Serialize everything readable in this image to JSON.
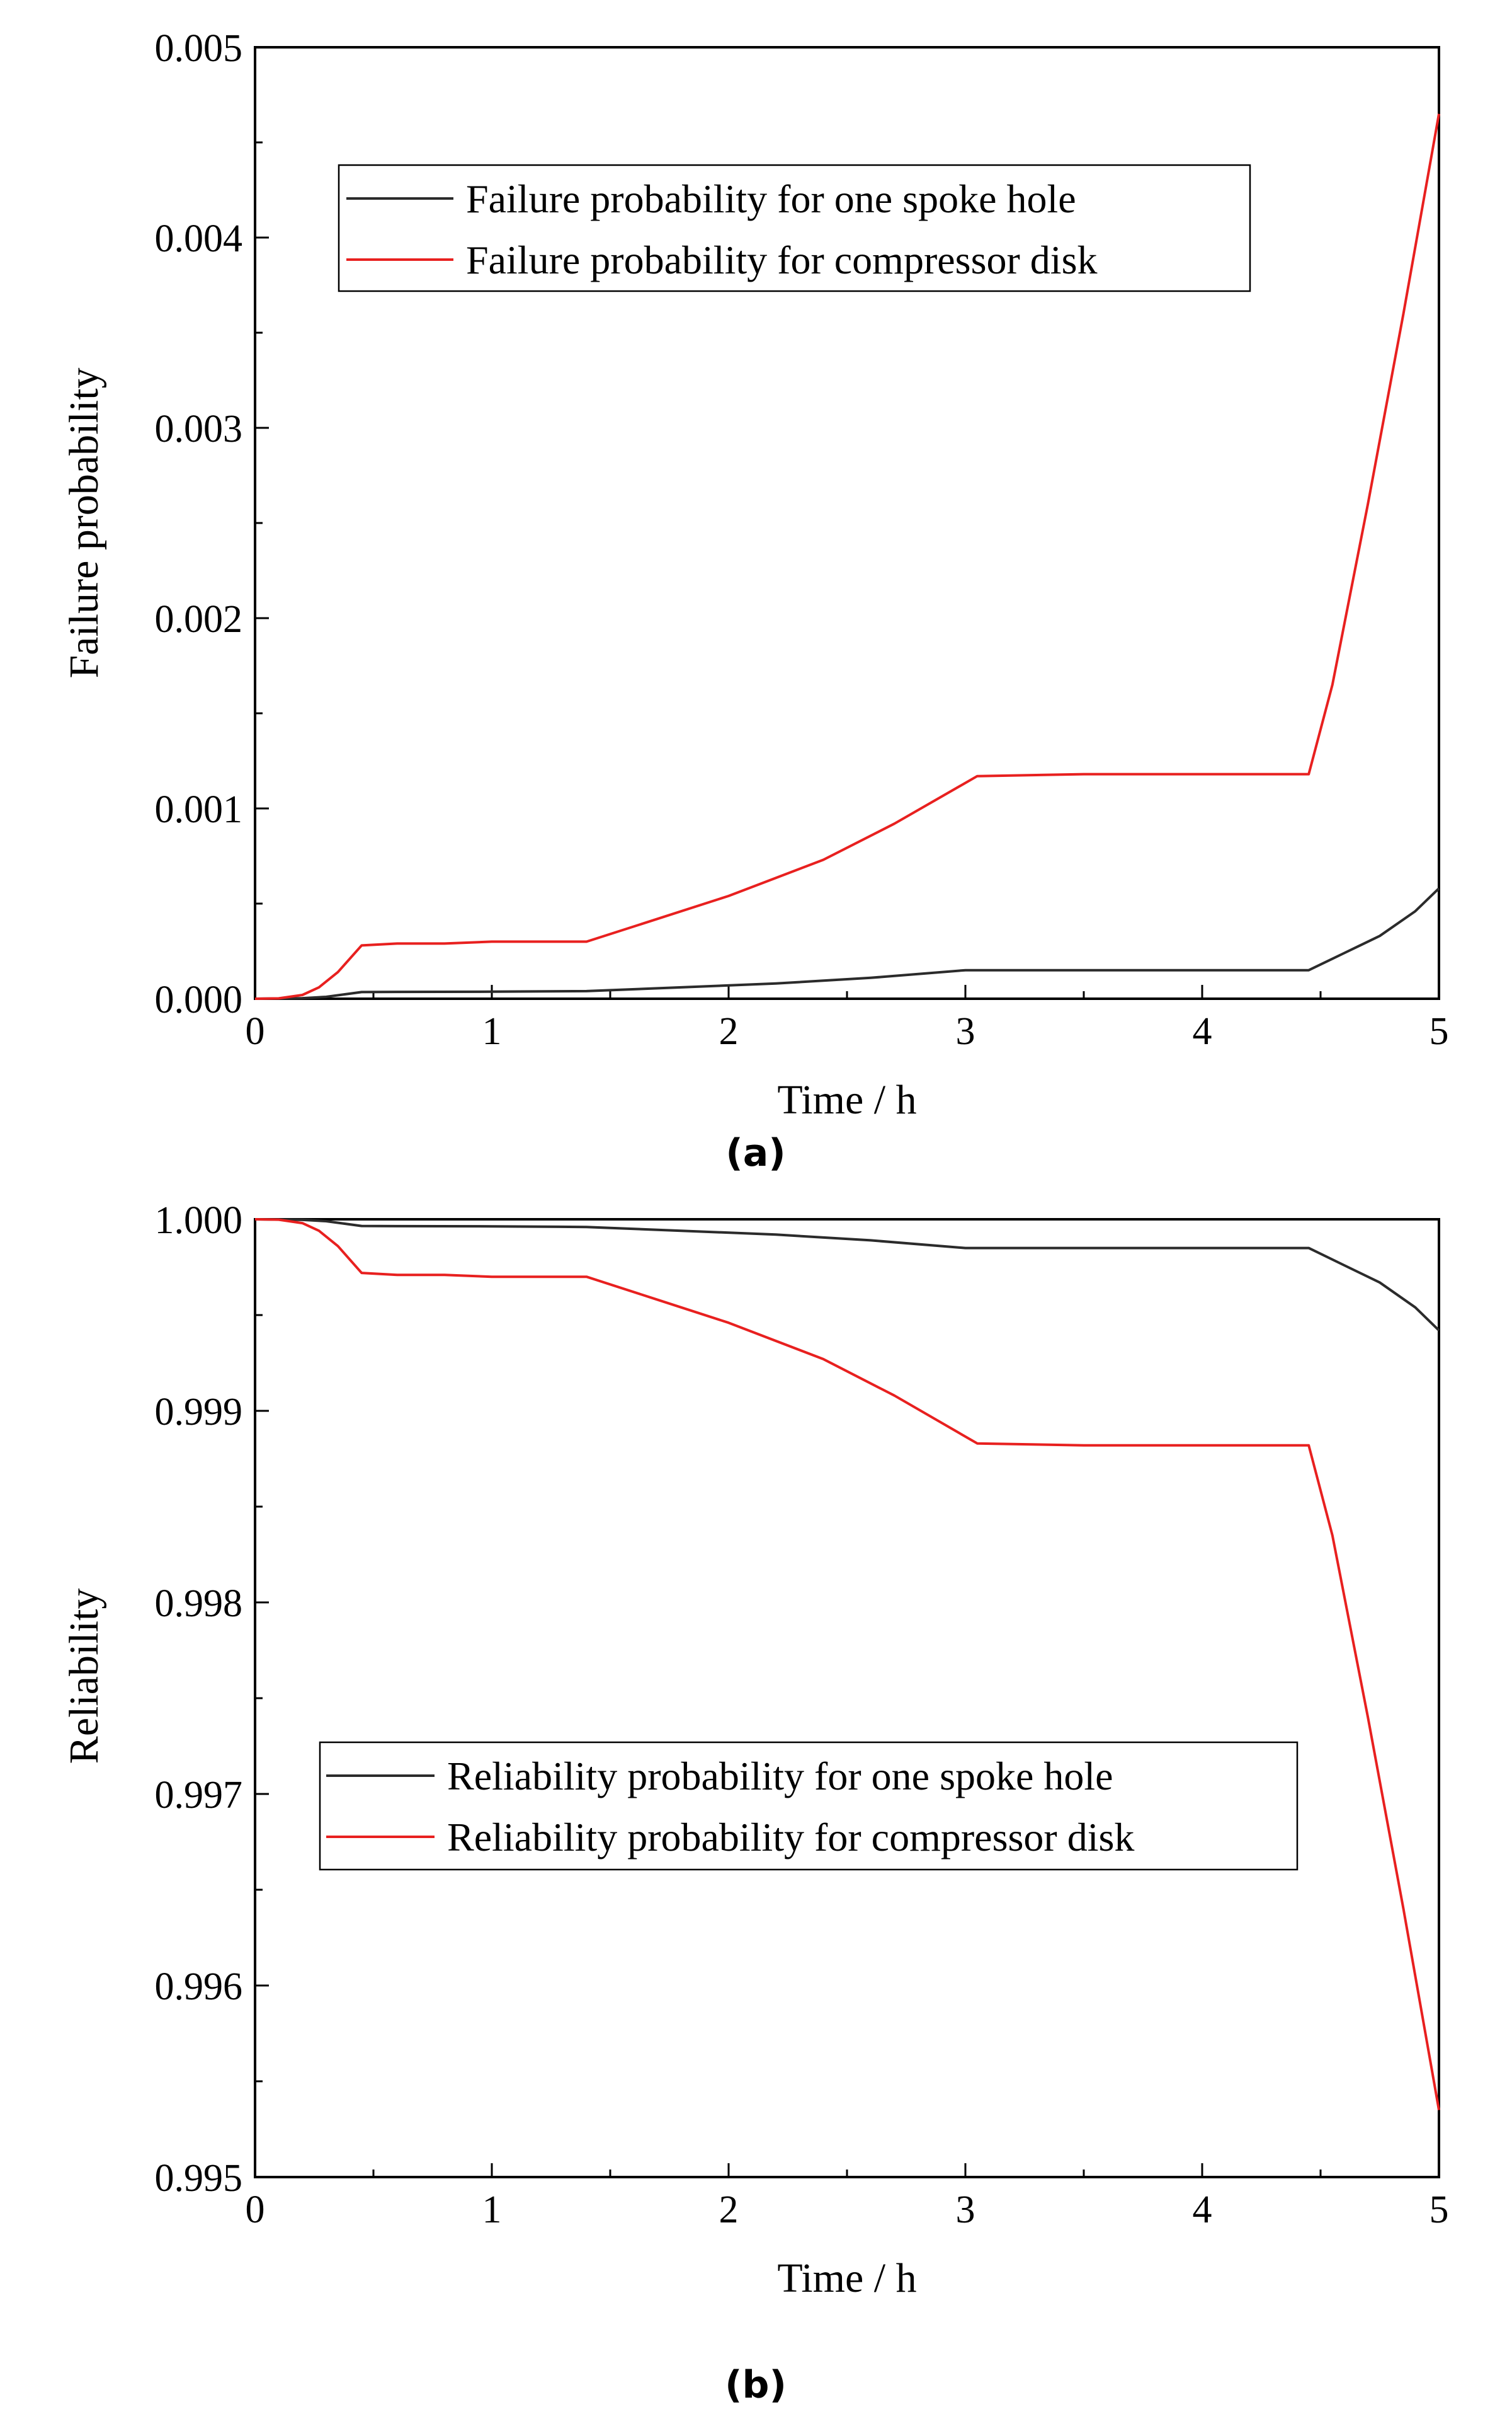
{
  "chart_data": [
    {
      "type": "line",
      "panel_label": "(a)",
      "xlabel": "Time / h",
      "ylabel": "Failure probability",
      "xlim": [
        0,
        5
      ],
      "ylim": [
        0,
        0.005
      ],
      "x_ticks": [
        "0",
        "1",
        "2",
        "3",
        "4",
        "5"
      ],
      "y_ticks": [
        "0.000",
        "0.001",
        "0.002",
        "0.003",
        "0.004",
        "0.005"
      ],
      "legend_position": "upper-center",
      "series": [
        {
          "name": "Failure probability for one spoke hole",
          "color": "#2b2b2b",
          "x": [
            0,
            0.2,
            0.3,
            0.45,
            0.6,
            1.0,
            1.4,
            1.8,
            2.2,
            2.6,
            3.0,
            3.5,
            4.0,
            4.45,
            4.6,
            4.75,
            4.9,
            5.0
          ],
          "y": [
            0,
            3e-06,
            1e-05,
            3.5e-05,
            3.6e-05,
            3.7e-05,
            4e-05,
            6e-05,
            8e-05,
            0.00011,
            0.00015,
            0.00015,
            0.00015,
            0.00015,
            0.00024,
            0.00033,
            0.00046,
            0.00058
          ]
        },
        {
          "name": "Failure probability for compressor disk",
          "color": "#e8201f",
          "x": [
            0,
            0.1,
            0.2,
            0.27,
            0.35,
            0.45,
            0.6,
            0.8,
            1.0,
            1.4,
            1.7,
            2.0,
            2.4,
            2.7,
            3.05,
            3.5,
            4.0,
            4.45,
            4.55,
            4.7,
            4.85,
            5.0
          ],
          "y": [
            0,
            2e-06,
            2e-05,
            6e-05,
            0.00014,
            0.00028,
            0.00029,
            0.00029,
            0.0003,
            0.0003,
            0.00042,
            0.00054,
            0.00073,
            0.00092,
            0.00117,
            0.00118,
            0.00118,
            0.00118,
            0.00165,
            0.0026,
            0.0036,
            0.00465
          ]
        }
      ]
    },
    {
      "type": "line",
      "panel_label": "(b)",
      "xlabel": "Time / h",
      "ylabel": "Reliability",
      "xlim": [
        0,
        5
      ],
      "ylim": [
        0.995,
        1.0
      ],
      "x_ticks": [
        "0",
        "1",
        "2",
        "3",
        "4",
        "5"
      ],
      "y_ticks": [
        "0.995",
        "0.996",
        "0.997",
        "0.998",
        "0.999",
        "1.000"
      ],
      "legend_position": "lower-center",
      "series": [
        {
          "name": "Reliability probability for one spoke hole",
          "color": "#2b2b2b",
          "x": [
            0,
            0.2,
            0.3,
            0.45,
            0.6,
            1.0,
            1.4,
            1.8,
            2.2,
            2.6,
            3.0,
            3.5,
            4.0,
            4.45,
            4.6,
            4.75,
            4.9,
            5.0
          ],
          "y": [
            1.0,
            0.999997,
            0.99999,
            0.999965,
            0.999964,
            0.999963,
            0.99996,
            0.99994,
            0.99992,
            0.99989,
            0.99985,
            0.99985,
            0.99985,
            0.99985,
            0.99976,
            0.99967,
            0.99954,
            0.99942
          ]
        },
        {
          "name": "Reliability probability for compressor disk",
          "color": "#e8201f",
          "x": [
            0,
            0.1,
            0.2,
            0.27,
            0.35,
            0.45,
            0.6,
            0.8,
            1.0,
            1.4,
            1.7,
            2.0,
            2.4,
            2.7,
            3.05,
            3.5,
            4.0,
            4.45,
            4.55,
            4.7,
            4.85,
            5.0
          ],
          "y": [
            1.0,
            0.999998,
            0.99998,
            0.99994,
            0.99986,
            0.99972,
            0.99971,
            0.99971,
            0.9997,
            0.9997,
            0.99958,
            0.99946,
            0.99927,
            0.99908,
            0.99883,
            0.99882,
            0.99882,
            0.99882,
            0.99835,
            0.9974,
            0.9964,
            0.99535
          ]
        }
      ]
    }
  ]
}
